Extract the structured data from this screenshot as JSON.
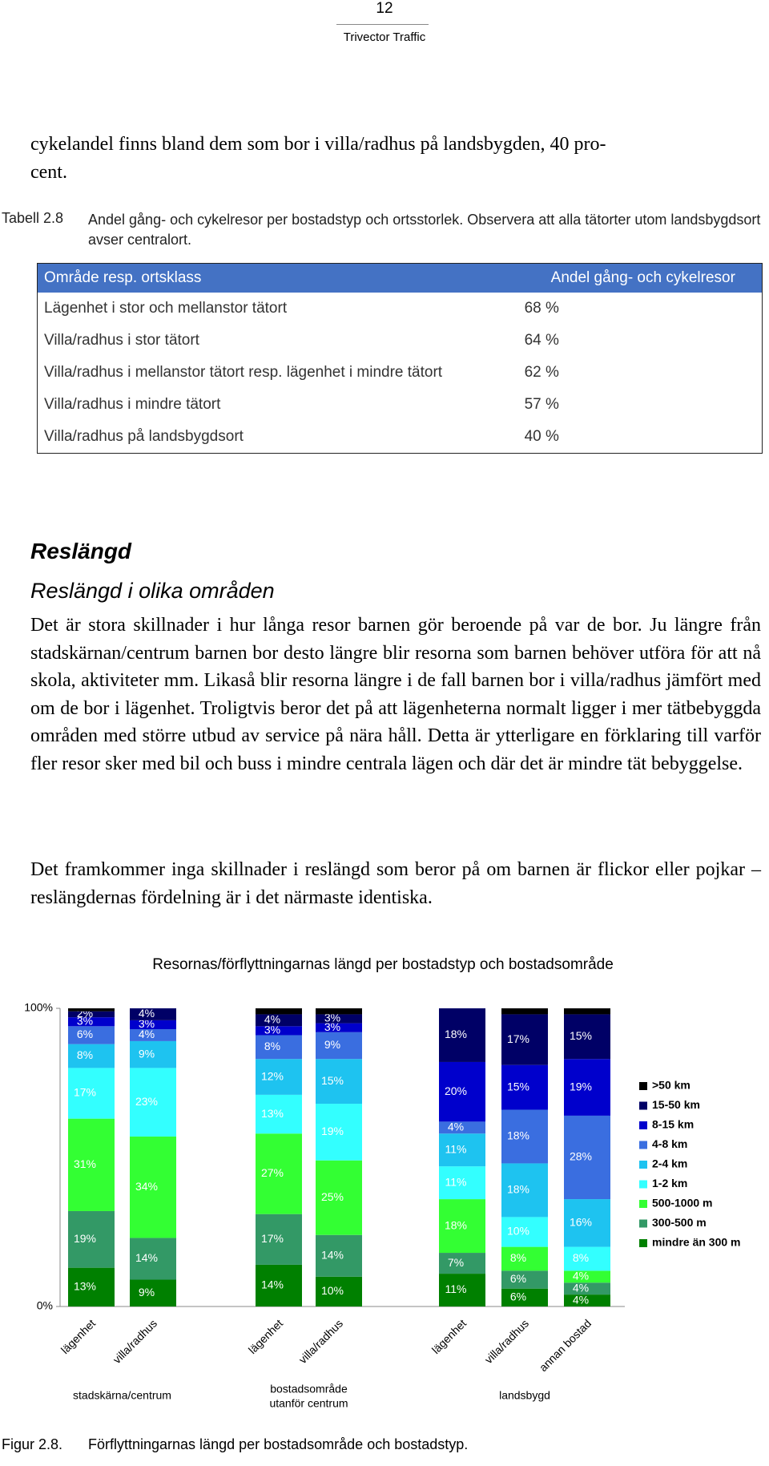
{
  "header": {
    "page_number": "12",
    "company": "Trivector Traffic"
  },
  "intro_lines": [
    "cykelandel finns bland dem som bor i villa/radhus på landsbygden, 40 pro-",
    "cent."
  ],
  "table_caption": {
    "label": "Tabell 2.8",
    "text": "Andel gång- och cykelresor per bostadstyp och ortsstorlek. Observera att alla tätorter utom landsbygdsort avser centralort."
  },
  "table": {
    "header": [
      "Område resp. ortsklass",
      "Andel gång- och cykelresor"
    ],
    "rows": [
      [
        "Lägenhet i stor och mellanstor tätort",
        "68 %"
      ],
      [
        "Villa/radhus i stor tätort",
        "64 %"
      ],
      [
        "Villa/radhus i mellanstor tätort resp. lägenhet i mindre tätort",
        "62 %"
      ],
      [
        "Villa/radhus i mindre tätort",
        "57 %"
      ],
      [
        "Villa/radhus på landsbygdsort",
        "40 %"
      ]
    ]
  },
  "section_heading": "Reslängd",
  "subsection_heading": "Reslängd i olika områden",
  "paragraphs": [
    "Det är stora skillnader i hur långa resor barnen gör beroende på var de bor. Ju längre från stadskärnan/centrum barnen bor desto längre blir resorna som barnen behöver utföra för att nå skola, aktiviteter mm. Likaså blir resorna längre i de fall barnen bor i villa/radhus jämfört med om de bor i lägenhet. Troligtvis beror det på att lägenheterna normalt ligger i mer tätbebyggda områden med större utbud av service på nära håll. Detta är ytterligare en förklaring till varför fler resor sker med bil och buss i mindre centrala lägen och där det är mindre tät bebyggelse.",
    "Det framkommer inga skillnader i reslängd som beror på om barnen är flickor eller pojkar – reslängdernas fördelning är i det närmaste identiska."
  ],
  "chart_data": {
    "type": "stacked_bar",
    "title": "Resornas/förflyttningarnas längd per bostadstyp och bostadsområde",
    "categories": [
      "lägenhet",
      "villa/radhus",
      "lägenhet",
      "villa/radhus",
      "lägenhet",
      "villa/radhus",
      "annan bostad"
    ],
    "groups": [
      {
        "lines": [
          "stadskärna/centrum"
        ],
        "members": [
          0,
          1
        ]
      },
      {
        "lines": [
          "bostadsområde",
          "utanför centrum"
        ],
        "members": [
          2,
          3
        ]
      },
      {
        "lines": [
          "landsbygd"
        ],
        "members": [
          4,
          5,
          6
        ]
      }
    ],
    "ylim": [
      0,
      100
    ],
    "yticks": [
      {
        "value": 0,
        "label": "0%"
      },
      {
        "value": 100,
        "label": "100%"
      }
    ],
    "series": [
      {
        "name": "mindre än 300 m",
        "color": "#008000",
        "values": [
          13,
          9,
          14,
          10,
          11,
          6,
          4
        ],
        "value_labels": [
          "13%",
          "9%",
          "14%",
          "10%",
          "11%",
          "6%",
          "4%"
        ]
      },
      {
        "name": "300-500 m",
        "color": "#339966",
        "values": [
          19,
          14,
          17,
          14,
          7,
          6,
          4
        ],
        "value_labels": [
          "19%",
          "14%",
          "17%",
          "14%",
          "7%",
          "6%",
          "4%"
        ]
      },
      {
        "name": "500-1000 m",
        "color": "#33ff33",
        "values": [
          31,
          34,
          27,
          25,
          18,
          8,
          4
        ],
        "value_labels": [
          "31%",
          "34%",
          "27%",
          "25%",
          "18%",
          "8%",
          "4%"
        ]
      },
      {
        "name": "1-2 km",
        "color": "#33ffff",
        "values": [
          17,
          23,
          13,
          19,
          11,
          10,
          8
        ],
        "value_labels": [
          "17%",
          "23%",
          "13%",
          "19%",
          "11%",
          "10%",
          "8%"
        ]
      },
      {
        "name": "2-4 km",
        "color": "#1ec3f0",
        "values": [
          8,
          9,
          12,
          15,
          11,
          18,
          16
        ],
        "value_labels": [
          "8%",
          "9%",
          "12%",
          "15%",
          "11%",
          "18%",
          "16%"
        ]
      },
      {
        "name": "4-8 km",
        "color": "#3a6ee0",
        "values": [
          6,
          4,
          8,
          9,
          4,
          18,
          28
        ],
        "value_labels": [
          "6%",
          "4%",
          "8%",
          "9%",
          "4%",
          "18%",
          "28%"
        ]
      },
      {
        "name": "8-15 km",
        "color": "#0000cc",
        "values": [
          3,
          3,
          3,
          3,
          20,
          15,
          19
        ],
        "value_labels": [
          "3%",
          "3%",
          "3%",
          "3%",
          "20%",
          "15%",
          "19%"
        ]
      },
      {
        "name": "15-50 km",
        "color": "#000066",
        "values": [
          2,
          4,
          4,
          3,
          18,
          17,
          15
        ],
        "value_labels": [
          "2%",
          "4%",
          "4%",
          "3%",
          "18%",
          "17%",
          "15%"
        ]
      },
      {
        "name": ">50 km",
        "color": "#000000",
        "values": [
          1,
          0,
          2,
          2,
          0,
          2,
          2
        ],
        "value_labels": [
          null,
          null,
          null,
          null,
          null,
          null,
          null
        ]
      }
    ]
  },
  "figure_caption": {
    "label": "Figur 2.8.",
    "text": "Förflyttningarnas längd per bostadsområde och bostadstyp."
  }
}
